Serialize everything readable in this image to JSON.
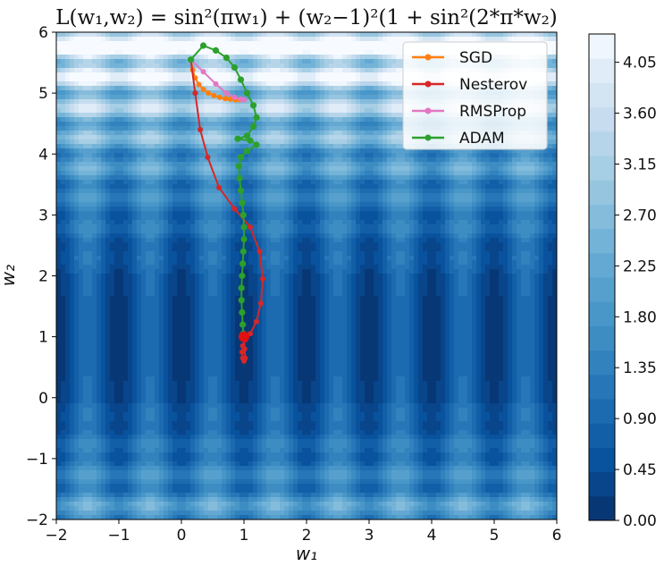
{
  "chart_data": {
    "type": "contour",
    "title": "L(w₁,w₂) = sin²(πw₁) + (w₂−1)²(1 + sin²(2*π*w₂)",
    "xlabel": "w₁",
    "ylabel": "w₂",
    "xlim": [
      -2,
      6
    ],
    "ylim": [
      -2,
      6
    ],
    "x_ticks": [
      "−2",
      "−1",
      "0",
      "1",
      "2",
      "3",
      "4",
      "5",
      "6"
    ],
    "y_ticks": [
      "−2",
      "−1",
      "0",
      "1",
      "2",
      "3",
      "4",
      "5",
      "6"
    ],
    "colorbar": {
      "ticks": [
        "0.00",
        "0.45",
        "0.90",
        "1.35",
        "1.80",
        "2.25",
        "2.70",
        "3.15",
        "3.60",
        "4.05"
      ],
      "range": [
        0,
        4.3
      ],
      "colormap": "Blues_r"
    },
    "legend_position": "top-right",
    "series": [
      {
        "name": "SGD",
        "color": "#ff7f0e",
        "points": [
          [
            0.15,
            5.55
          ],
          [
            0.18,
            5.38
          ],
          [
            0.22,
            5.25
          ],
          [
            0.28,
            5.14
          ],
          [
            0.35,
            5.06
          ],
          [
            0.43,
            5.0
          ],
          [
            0.52,
            4.96
          ],
          [
            0.61,
            4.93
          ],
          [
            0.7,
            4.91
          ],
          [
            0.78,
            4.9
          ],
          [
            0.86,
            4.89
          ],
          [
            0.93,
            4.89
          ],
          [
            1.0,
            4.89
          ]
        ]
      },
      {
        "name": "Nesterov",
        "color": "#d62728",
        "points": [
          [
            0.15,
            5.55
          ],
          [
            0.22,
            5.0
          ],
          [
            0.3,
            4.4
          ],
          [
            0.42,
            3.95
          ],
          [
            0.6,
            3.45
          ],
          [
            0.85,
            3.1
          ],
          [
            1.1,
            2.8
          ],
          [
            1.25,
            2.4
          ],
          [
            1.3,
            1.95
          ],
          [
            1.27,
            1.55
          ],
          [
            1.2,
            1.25
          ],
          [
            1.1,
            1.05
          ],
          [
            1.02,
            0.95
          ],
          [
            0.98,
            0.85
          ],
          [
            0.97,
            0.75
          ],
          [
            0.98,
            0.65
          ],
          [
            1.0,
            0.6
          ],
          [
            1.02,
            0.65
          ],
          [
            1.01,
            0.8
          ],
          [
            1.0,
            0.95
          ],
          [
            1.0,
            1.02
          ],
          [
            1.0,
            1.0
          ]
        ]
      },
      {
        "name": "RMSProp",
        "color": "#e377c2",
        "points": [
          [
            0.15,
            5.55
          ],
          [
            0.35,
            5.35
          ],
          [
            0.55,
            5.15
          ],
          [
            0.72,
            5.0
          ],
          [
            0.85,
            4.93
          ],
          [
            0.95,
            4.9
          ],
          [
            1.0,
            4.89
          ]
        ]
      },
      {
        "name": "ADAM",
        "color": "#2ca02c",
        "points": [
          [
            0.15,
            5.55
          ],
          [
            0.35,
            5.78
          ],
          [
            0.55,
            5.7
          ],
          [
            0.72,
            5.58
          ],
          [
            0.85,
            5.42
          ],
          [
            0.95,
            5.22
          ],
          [
            1.05,
            5.0
          ],
          [
            1.15,
            4.8
          ],
          [
            1.2,
            4.6
          ],
          [
            1.15,
            4.45
          ],
          [
            1.05,
            4.3
          ],
          [
            0.9,
            4.25
          ],
          [
            1.1,
            4.22
          ],
          [
            1.2,
            4.15
          ],
          [
            1.05,
            4.05
          ],
          [
            0.95,
            3.95
          ],
          [
            0.92,
            3.8
          ],
          [
            0.93,
            3.6
          ],
          [
            0.95,
            3.4
          ],
          [
            0.97,
            3.2
          ],
          [
            0.99,
            3.0
          ],
          [
            1.0,
            2.8
          ],
          [
            1.0,
            2.6
          ],
          [
            0.99,
            2.4
          ],
          [
            0.98,
            2.2
          ],
          [
            0.97,
            2.0
          ],
          [
            0.96,
            1.8
          ],
          [
            0.96,
            1.6
          ],
          [
            0.97,
            1.4
          ],
          [
            0.98,
            1.2
          ],
          [
            0.99,
            1.05
          ],
          [
            1.0,
            1.0
          ]
        ]
      }
    ]
  }
}
